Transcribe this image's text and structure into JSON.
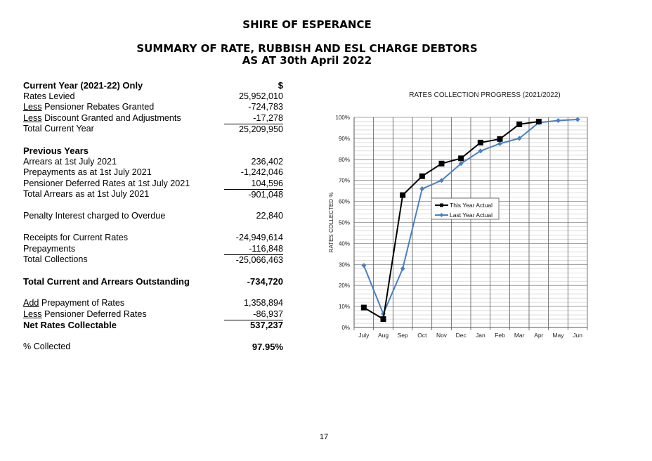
{
  "header": {
    "org": "SHIRE OF ESPERANCE",
    "title": "SUMMARY OF RATE, RUBBISH AND ESL CHARGE DEBTORS",
    "subtitle": "AS AT 30th April 2022"
  },
  "summary": {
    "sections": [
      {
        "rows": [
          {
            "label": "Current Year (2021-22) Only",
            "value": "$",
            "bold": true
          },
          {
            "label": "Rates Levied",
            "value": "25,952,010"
          },
          {
            "prefix": "Less",
            "label": " Pensioner Rebates Granted",
            "value": "-724,783"
          },
          {
            "prefix": "Less",
            "label": " Discount Granted and Adjustments",
            "value": "-17,278"
          },
          {
            "label": "Total Current Year",
            "value": "25,209,950",
            "subtotal": true
          }
        ]
      },
      {
        "rows": [
          {
            "label": "Previous Years",
            "value": "",
            "bold": true
          },
          {
            "label": "Arrears at 1st July 2021",
            "value": "236,402"
          },
          {
            "label": "Prepayments as at 1st July 2021",
            "value": "-1,242,046"
          },
          {
            "label": "Pensioner Deferred Rates at 1st July 2021",
            "value": "104,596"
          },
          {
            "label": "Total Arrears as at 1st July 2021",
            "value": "-901,048",
            "subtotal": true
          }
        ]
      },
      {
        "rows": [
          {
            "label": "Penalty Interest charged to Overdue",
            "value": "22,840"
          }
        ]
      },
      {
        "rows": [
          {
            "label": "Receipts for Current Rates",
            "value": "-24,949,614"
          },
          {
            "label": "Prepayments",
            "value": "-116,848"
          },
          {
            "label": "Total Collections",
            "value": "-25,066,463",
            "subtotal": true
          }
        ]
      },
      {
        "rows": [
          {
            "label": "Total Current and Arrears Outstanding",
            "value": "-734,720",
            "bold": true
          }
        ]
      },
      {
        "rows": [
          {
            "prefix": "Add",
            "label": " Prepayment of Rates",
            "value": "1,358,894"
          },
          {
            "prefix": "Less",
            "label": " Pensioner Deferred Rates",
            "value": "-86,937"
          },
          {
            "label": "Net Rates Collectable",
            "value": "537,237",
            "bold": true,
            "subtotal": true
          }
        ]
      },
      {
        "rows": [
          {
            "label": "% Collected",
            "value": "97.95%",
            "valueBold": true
          }
        ]
      }
    ]
  },
  "chart_data": {
    "type": "line",
    "title": "RATES COLLECTION PROGRESS (2021/2022)",
    "xlabel": "",
    "ylabel": "RATES COLLECTED %",
    "ylim": [
      0,
      100
    ],
    "yticks": [
      "0%",
      "10%",
      "20%",
      "30%",
      "40%",
      "50%",
      "60%",
      "70%",
      "80%",
      "90%",
      "100%"
    ],
    "categories": [
      "July",
      "Aug",
      "Sep",
      "Oct",
      "Nov",
      "Dec",
      "Jan",
      "Feb",
      "Mar",
      "Apr",
      "May",
      "Jun"
    ],
    "grid": true,
    "legend": "center",
    "series": [
      {
        "name": "This Year Actual",
        "color": "#000000",
        "marker": "square",
        "values": [
          9.5,
          4,
          63,
          72,
          78,
          80.5,
          88,
          89.7,
          96.7,
          98,
          null,
          null
        ]
      },
      {
        "name": "Last Year Actual",
        "color": "#4a7ebf",
        "marker": "diamond",
        "values": [
          29.5,
          6.5,
          28,
          66,
          70,
          78,
          84,
          87.5,
          90,
          97.5,
          98.5,
          99
        ]
      }
    ]
  },
  "footer": {
    "page_number": "17"
  }
}
